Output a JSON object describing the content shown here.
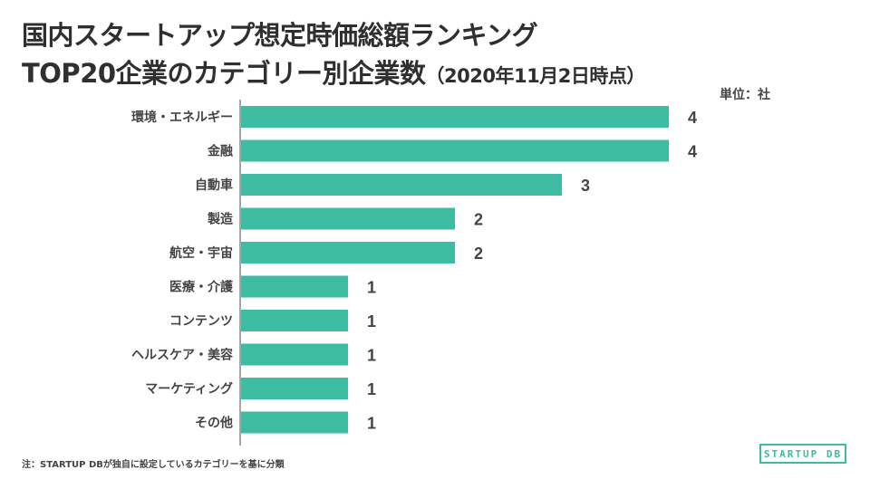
{
  "title_line1": "国内スタートアップ想定時価総額ランキング",
  "title_line2_main": "TOP20企業のカテゴリー別企業数",
  "title_line2_sub": "（2020年11月2日時点）",
  "unit_label": "単位：社",
  "footnote": "注：STARTUP DBが独自に設定しているカテゴリーを基に分類",
  "logo_text": "STARTUP DB",
  "colors": {
    "bar": "#3dbca2",
    "text": "#444444",
    "axis": "#888888"
  },
  "chart_data": {
    "type": "bar",
    "orientation": "horizontal",
    "categories": [
      "環境・エネルギー",
      "金融",
      "自動車",
      "製造",
      "航空・宇宙",
      "医療・介護",
      "コンテンツ",
      "ヘルスケア・美容",
      "マーケティング",
      "その他"
    ],
    "values": [
      4,
      4,
      3,
      2,
      2,
      1,
      1,
      1,
      1,
      1
    ],
    "xlim": [
      0,
      4
    ],
    "grid": false,
    "legend": "none",
    "data_labels": true
  }
}
